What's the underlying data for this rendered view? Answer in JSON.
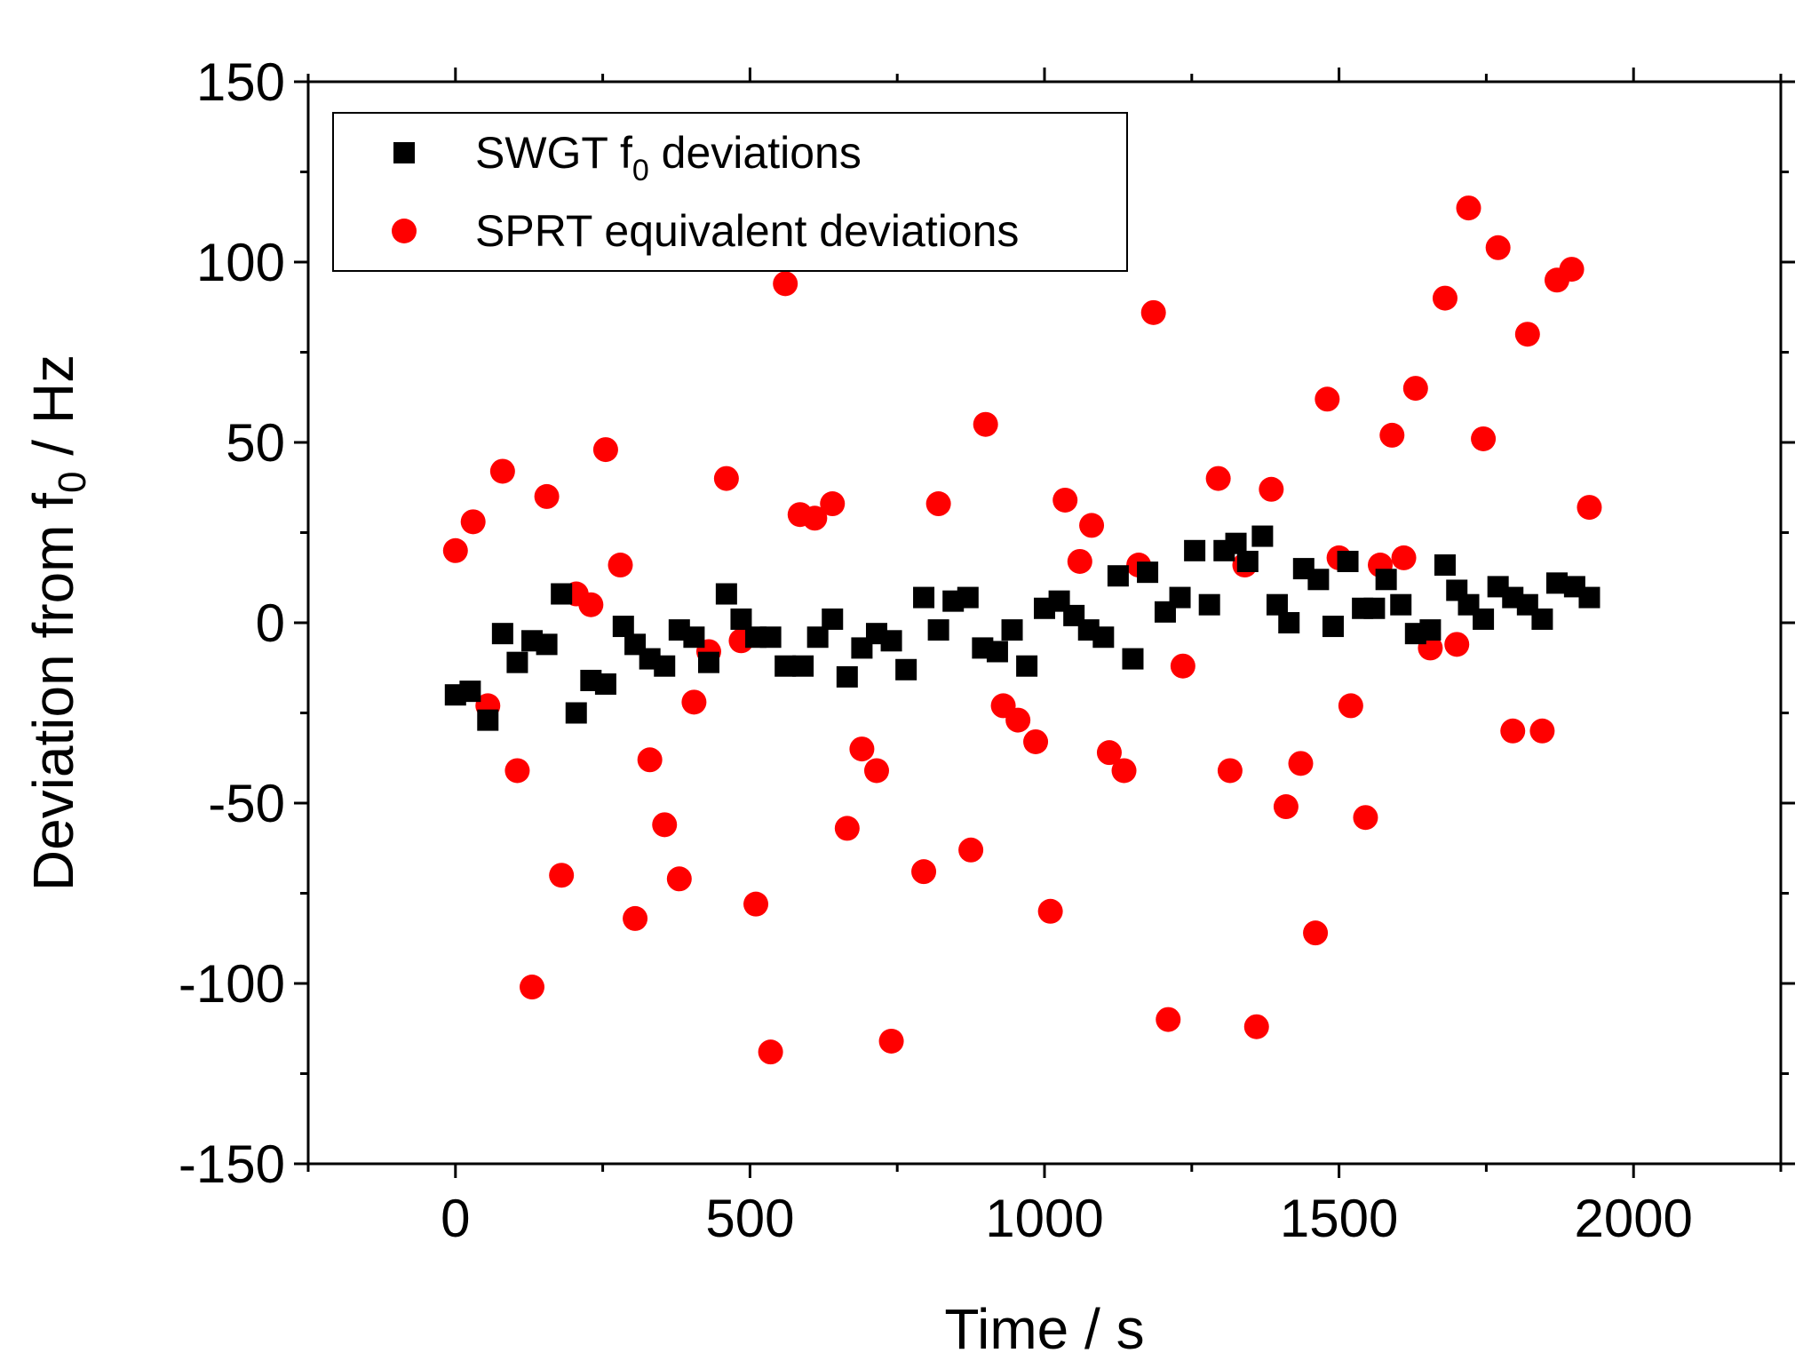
{
  "chart_data": {
    "type": "scatter",
    "title": "",
    "xlabel": "Time / s",
    "ylabel": {
      "main": "Deviation from f",
      "sub": "0",
      "tail": " / Hz"
    },
    "xlim": [
      -250,
      2250
    ],
    "ylim": [
      -150,
      150
    ],
    "xticks": [
      0,
      500,
      1000,
      1500,
      2000
    ],
    "xtick_labels": [
      "0",
      "500",
      "1000",
      "1500",
      "2000"
    ],
    "yticks": [
      -150,
      -100,
      -50,
      0,
      50,
      100,
      150
    ],
    "ytick_labels": [
      "-150",
      "-100",
      "-50",
      "0",
      "50",
      "100",
      "150"
    ],
    "grid": false,
    "legend_position": "top-left",
    "colors": {
      "swgt": "#000000",
      "sprt": "#ff0000"
    },
    "series": [
      {
        "name": "SWGT f0 deviations",
        "label_main": "SWGT f",
        "label_sub": "0",
        "label_tail": " deviations",
        "marker": "square",
        "points": [
          [
            0,
            -20
          ],
          [
            25,
            -19
          ],
          [
            55,
            -27
          ],
          [
            80,
            -3
          ],
          [
            105,
            -11
          ],
          [
            130,
            -5
          ],
          [
            155,
            -6
          ],
          [
            180,
            8
          ],
          [
            205,
            -25
          ],
          [
            230,
            -16
          ],
          [
            255,
            -17
          ],
          [
            285,
            -1
          ],
          [
            305,
            -6
          ],
          [
            330,
            -10
          ],
          [
            355,
            -12
          ],
          [
            380,
            -2
          ],
          [
            405,
            -4
          ],
          [
            430,
            -11
          ],
          [
            460,
            8
          ],
          [
            485,
            1
          ],
          [
            510,
            -4
          ],
          [
            535,
            -4
          ],
          [
            560,
            -12
          ],
          [
            590,
            -12
          ],
          [
            615,
            -4
          ],
          [
            640,
            1
          ],
          [
            665,
            -15
          ],
          [
            690,
            -7
          ],
          [
            715,
            -3
          ],
          [
            740,
            -5
          ],
          [
            765,
            -13
          ],
          [
            795,
            7
          ],
          [
            820,
            -2
          ],
          [
            845,
            6
          ],
          [
            870,
            7
          ],
          [
            895,
            -7
          ],
          [
            920,
            -8
          ],
          [
            945,
            -2
          ],
          [
            970,
            -12
          ],
          [
            1000,
            4
          ],
          [
            1025,
            6
          ],
          [
            1050,
            2
          ],
          [
            1075,
            -2
          ],
          [
            1100,
            -4
          ],
          [
            1125,
            13
          ],
          [
            1150,
            -10
          ],
          [
            1175,
            14
          ],
          [
            1205,
            3
          ],
          [
            1230,
            7
          ],
          [
            1255,
            20
          ],
          [
            1280,
            5
          ],
          [
            1305,
            20
          ],
          [
            1325,
            22
          ],
          [
            1345,
            17
          ],
          [
            1370,
            24
          ],
          [
            1395,
            5
          ],
          [
            1415,
            0
          ],
          [
            1440,
            15
          ],
          [
            1465,
            12
          ],
          [
            1490,
            -1
          ],
          [
            1515,
            17
          ],
          [
            1540,
            4
          ],
          [
            1560,
            4
          ],
          [
            1580,
            12
          ],
          [
            1605,
            5
          ],
          [
            1630,
            -3
          ],
          [
            1655,
            -2
          ],
          [
            1680,
            16
          ],
          [
            1700,
            9
          ],
          [
            1720,
            5
          ],
          [
            1745,
            1
          ],
          [
            1770,
            10
          ],
          [
            1795,
            7
          ],
          [
            1820,
            5
          ],
          [
            1845,
            1
          ],
          [
            1870,
            11
          ],
          [
            1900,
            10
          ],
          [
            1925,
            7
          ]
        ]
      },
      {
        "name": "SPRT equivalent deviations",
        "label_main": "SPRT equivalent deviations",
        "marker": "circle",
        "points": [
          [
            0,
            20
          ],
          [
            30,
            28
          ],
          [
            55,
            -23
          ],
          [
            80,
            42
          ],
          [
            105,
            -41
          ],
          [
            130,
            -101
          ],
          [
            155,
            35
          ],
          [
            180,
            -70
          ],
          [
            205,
            8
          ],
          [
            230,
            5
          ],
          [
            255,
            48
          ],
          [
            280,
            16
          ],
          [
            305,
            -82
          ],
          [
            330,
            -38
          ],
          [
            355,
            -56
          ],
          [
            380,
            -71
          ],
          [
            405,
            -22
          ],
          [
            430,
            -8
          ],
          [
            460,
            40
          ],
          [
            485,
            -5
          ],
          [
            510,
            -78
          ],
          [
            535,
            -119
          ],
          [
            560,
            94
          ],
          [
            585,
            30
          ],
          [
            610,
            29
          ],
          [
            640,
            33
          ],
          [
            665,
            -57
          ],
          [
            690,
            -35
          ],
          [
            715,
            -41
          ],
          [
            740,
            -116
          ],
          [
            795,
            -69
          ],
          [
            820,
            33
          ],
          [
            875,
            -63
          ],
          [
            900,
            55
          ],
          [
            930,
            -23
          ],
          [
            955,
            -27
          ],
          [
            985,
            -33
          ],
          [
            1010,
            -80
          ],
          [
            1035,
            34
          ],
          [
            1060,
            17
          ],
          [
            1080,
            27
          ],
          [
            1110,
            -36
          ],
          [
            1135,
            -41
          ],
          [
            1160,
            16
          ],
          [
            1185,
            86
          ],
          [
            1210,
            -110
          ],
          [
            1235,
            -12
          ],
          [
            1295,
            40
          ],
          [
            1315,
            -41
          ],
          [
            1340,
            16
          ],
          [
            1360,
            -112
          ],
          [
            1385,
            37
          ],
          [
            1410,
            -51
          ],
          [
            1435,
            -39
          ],
          [
            1460,
            -86
          ],
          [
            1480,
            62
          ],
          [
            1500,
            18
          ],
          [
            1520,
            -23
          ],
          [
            1545,
            -54
          ],
          [
            1570,
            16
          ],
          [
            1590,
            52
          ],
          [
            1610,
            18
          ],
          [
            1630,
            65
          ],
          [
            1655,
            -7
          ],
          [
            1680,
            90
          ],
          [
            1700,
            -6
          ],
          [
            1720,
            115
          ],
          [
            1745,
            51
          ],
          [
            1770,
            104
          ],
          [
            1795,
            -30
          ],
          [
            1820,
            80
          ],
          [
            1845,
            -30
          ],
          [
            1870,
            95
          ],
          [
            1895,
            98
          ],
          [
            1925,
            32
          ]
        ]
      }
    ]
  }
}
